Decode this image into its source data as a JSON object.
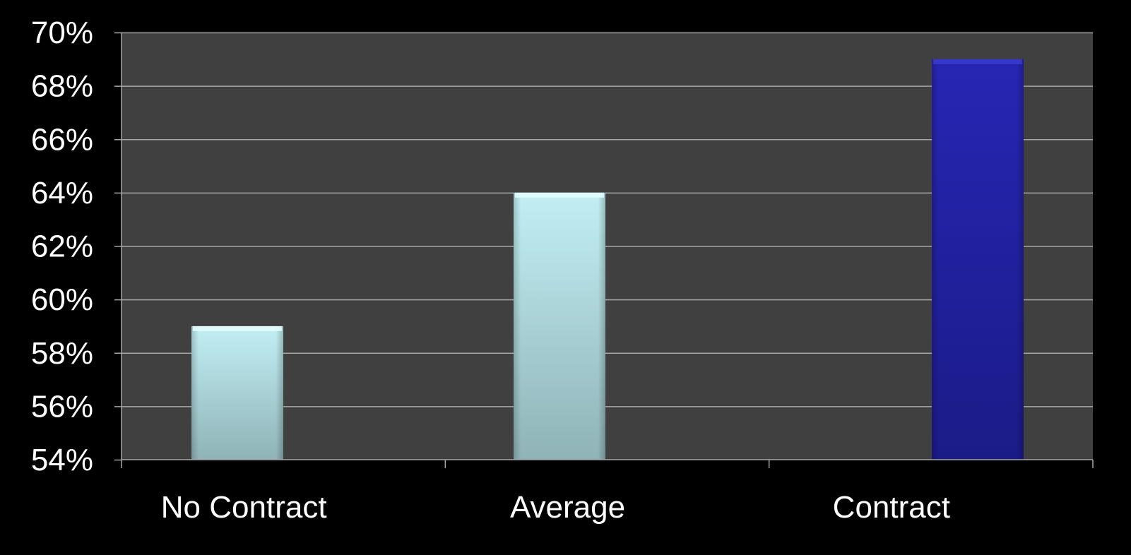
{
  "colors": {
    "background": "#000000",
    "plot_area": "#404040",
    "gridline": "#a6a6a6",
    "axis": "#a6a6a6",
    "text": "#ffffff",
    "bar_light": "#b9eaf0",
    "bar_light_bottom": "#8fb5b9",
    "bar_dark": "#2323b0",
    "bar_dark_bottom": "#1a1a8a"
  },
  "chart_data": {
    "type": "bar",
    "categories": [
      "No Contract",
      "Average",
      "Contract"
    ],
    "values": [
      59,
      64,
      69
    ],
    "value_unit": "%",
    "bar_colors": [
      "light",
      "light",
      "dark"
    ],
    "ylim": [
      54,
      70
    ],
    "yticks": [
      54,
      56,
      58,
      60,
      62,
      64,
      66,
      68,
      70
    ],
    "ytick_labels": [
      "54%",
      "56%",
      "58%",
      "60%",
      "62%",
      "64%",
      "66%",
      "68%",
      "70%"
    ],
    "grid": true,
    "legend": "none",
    "title": "",
    "xlabel": "",
    "ylabel": ""
  }
}
